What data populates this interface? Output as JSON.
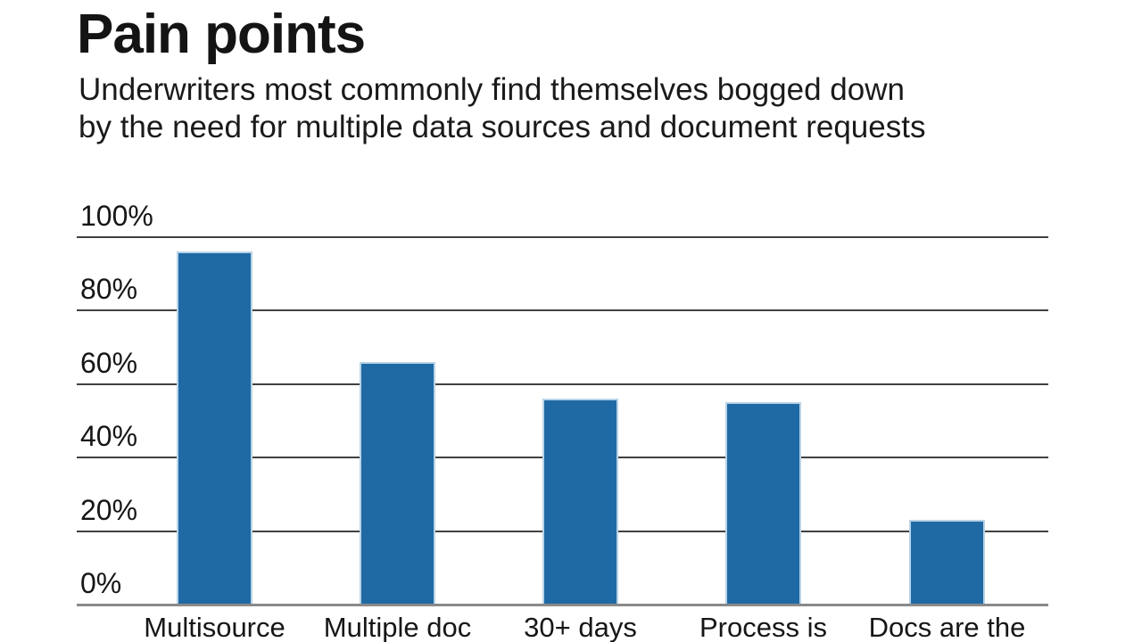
{
  "header": {
    "title": "Pain points",
    "subtitle_line1": "Underwriters most commonly find themselves bogged down",
    "subtitle_line2": "by the need for multiple data sources and document requests"
  },
  "chart_data": {
    "type": "bar",
    "title": "Pain points",
    "subtitle": "Underwriters most commonly find themselves bogged down by the need for multiple data sources and document requests",
    "categories": [
      "Multisource",
      "Multiple doc",
      "30+ days",
      "Process is",
      "Docs are the"
    ],
    "values": [
      96,
      66,
      56,
      55,
      23
    ],
    "xlabel": "",
    "ylabel": "",
    "ylim": [
      0,
      100
    ],
    "yticks": [
      0,
      20,
      40,
      60,
      80,
      100
    ],
    "ytick_suffix": "%",
    "grid": true,
    "legend": false,
    "colors": {
      "bar_fill": "#1f6aa5",
      "bar_border": "#b9d3e6",
      "gridline": "#414141",
      "axis_line": "#8a8a8a",
      "text": "#161616",
      "background": "#ffffff"
    }
  }
}
